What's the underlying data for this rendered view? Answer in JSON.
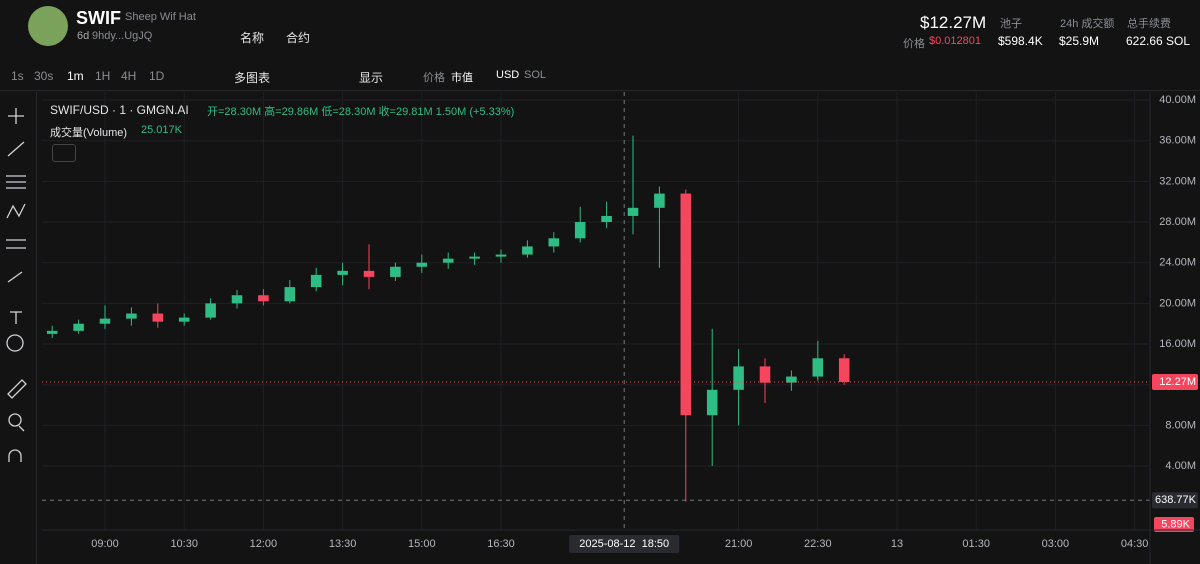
{
  "header": {
    "symbol": "SWIF",
    "name": "Sheep Wif Hat",
    "age": "6d",
    "address": "9hdy...UgJQ",
    "search_name": "名称",
    "search_contract": "合约",
    "market_cap": "$12.27M",
    "price_label": "价格",
    "price": "$0.012801",
    "stats": [
      {
        "label": "池子",
        "value": "$598.4K"
      },
      {
        "label": "24h 成交额",
        "value": "$25.9M"
      },
      {
        "label": "总手续费",
        "value": "622.66 SOL"
      }
    ]
  },
  "toolbar": {
    "intervals": [
      "1s",
      "30s",
      "1m",
      "1H",
      "4H",
      "1D"
    ],
    "multi_chart": "多图表",
    "display": "显示",
    "price_mode": "价格",
    "mcap_mode": "市值",
    "quote": "USD",
    "alt_quote": "SOL"
  },
  "legend": {
    "pair": "SWIF/USD · 1 · GMGN.AI",
    "open": "开=28.30M",
    "high": "高=29.86M",
    "low": "低=28.30M",
    "close": "收=29.81M",
    "change": "1.50M (+5.33%)",
    "volume_label": "成交量(Volume)",
    "volume_value": "25.017K"
  },
  "chart_data": {
    "type": "candlestick",
    "x": [
      480,
      510,
      540,
      570,
      600,
      630,
      660,
      690,
      720,
      750,
      780,
      810,
      840,
      870,
      900,
      930,
      960,
      990,
      1020,
      1050,
      1080,
      1110,
      1140,
      1170,
      1200,
      1230,
      1260,
      1290,
      1320,
      1350,
      1380
    ],
    "open": [
      17,
      17.3,
      18,
      18.5,
      19,
      18.2,
      18.6,
      20,
      20.8,
      20.2,
      21.6,
      22.8,
      23.2,
      22.6,
      23.6,
      24,
      24.4,
      24.6,
      24.8,
      25.6,
      26.4,
      28,
      28.6,
      29.4,
      30.8,
      9,
      11.5,
      13.8,
      12.2,
      12.8,
      14.6
    ],
    "high": [
      17.8,
      18.4,
      19.8,
      19.6,
      20,
      19,
      20.5,
      21.3,
      21.4,
      22.3,
      23.5,
      24,
      25.8,
      24,
      24.8,
      25,
      25,
      25.3,
      26.2,
      27,
      29.5,
      30,
      36.5,
      31.5,
      31.2,
      17.5,
      15.5,
      14.6,
      13.4,
      16.3,
      15
    ],
    "low": [
      16.6,
      17,
      17.5,
      17.8,
      17.6,
      17.8,
      18.4,
      19.5,
      19.8,
      20,
      21.2,
      21.8,
      21.4,
      22.2,
      23,
      23.4,
      23.8,
      24,
      24.5,
      25,
      26,
      27.4,
      26.8,
      23.5,
      0.5,
      4,
      8,
      10.2,
      11.4,
      12.4,
      12
    ],
    "close": [
      17.3,
      18,
      18.5,
      19,
      18.2,
      18.6,
      20,
      20.8,
      20.2,
      21.6,
      22.8,
      23.2,
      22.6,
      23.6,
      24,
      24.4,
      24.6,
      24.8,
      25.6,
      26.4,
      28,
      28.6,
      29.4,
      30.8,
      9,
      11.5,
      13.8,
      12.2,
      12.8,
      14.6,
      12.27
    ],
    "up_color": "#2ebd85",
    "down_color": "#f6465d",
    "xlim": [
      468.4,
      1727.5
    ],
    "xticks": [
      {
        "value": 540,
        "label": "09:00"
      },
      {
        "value": 630,
        "label": "10:30"
      },
      {
        "value": 720,
        "label": "12:00"
      },
      {
        "value": 810,
        "label": "13:30"
      },
      {
        "value": 900,
        "label": "15:00"
      },
      {
        "value": 990,
        "label": "16:30"
      },
      {
        "value": 1260,
        "label": "21:00"
      },
      {
        "value": 1350,
        "label": "22:30"
      },
      {
        "value": 1440,
        "label": "13"
      },
      {
        "value": 1530,
        "label": "01:30"
      },
      {
        "value": 1620,
        "label": "03:00"
      },
      {
        "value": 1710,
        "label": "04:30"
      }
    ],
    "ylim": [
      -2.29,
      40.79
    ],
    "yticks": [
      {
        "value": 4,
        "label": "4.00M"
      },
      {
        "value": 8,
        "label": "8.00M"
      },
      {
        "value": 12,
        "label": "12.00M"
      },
      {
        "value": 16,
        "label": "16.00M"
      },
      {
        "value": 20,
        "label": "20.00M"
      },
      {
        "value": 24,
        "label": "24.00M"
      },
      {
        "value": 28,
        "label": "28.00M"
      },
      {
        "value": 32,
        "label": "32.00M"
      },
      {
        "value": 36,
        "label": "36.00M"
      },
      {
        "value": 40,
        "label": "40.00M"
      }
    ],
    "grid": true,
    "last_price": {
      "value": 12.27,
      "label": "12.27M"
    },
    "crosshair": {
      "x": 1130,
      "x_label": "2025-08-12  18:50",
      "y": 0.63877,
      "y_label": "638.77K"
    },
    "volume_tag": "5.89K"
  }
}
